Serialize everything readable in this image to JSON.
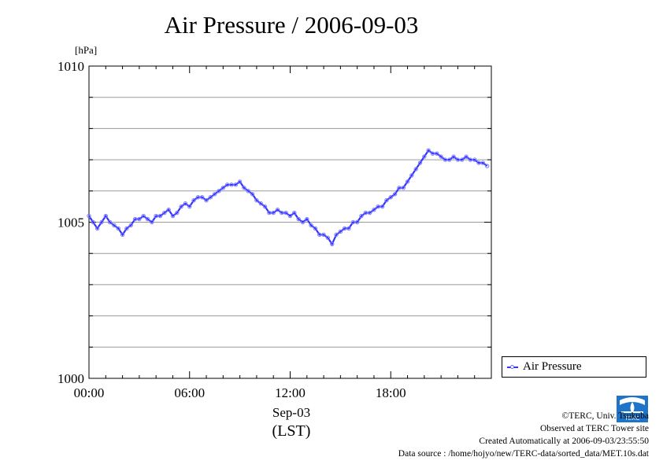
{
  "title": "Air Pressure / 2006-09-03",
  "chart_data": {
    "type": "line",
    "title": "Air Pressure / 2006-09-03",
    "ylabel": "[hPa]",
    "ylim": [
      1000,
      1010
    ],
    "y_ticks": [
      "1000",
      "1005",
      "1010"
    ],
    "xlim": [
      0,
      24
    ],
    "x_ticks": [
      "00:00",
      "06:00",
      "12:00",
      "18:00"
    ],
    "x_tick_values": [
      0,
      6,
      12,
      18
    ],
    "x_sublabel_date": "Sep-03",
    "x_sublabel_tz": "(LST)",
    "grid": true,
    "legend_position": "bottom-right outside",
    "series": [
      {
        "name": "Air Pressure",
        "color": "#3333ff",
        "x": [
          0,
          0.25,
          0.5,
          0.75,
          1,
          1.25,
          1.5,
          1.75,
          2,
          2.25,
          2.5,
          2.75,
          3,
          3.25,
          3.5,
          3.75,
          4,
          4.25,
          4.5,
          4.75,
          5,
          5.25,
          5.5,
          5.75,
          6,
          6.25,
          6.5,
          6.75,
          7,
          7.25,
          7.5,
          7.75,
          8,
          8.25,
          8.5,
          8.75,
          9,
          9.25,
          9.5,
          9.75,
          10,
          10.25,
          10.5,
          10.75,
          11,
          11.25,
          11.5,
          11.75,
          12,
          12.25,
          12.5,
          12.75,
          13,
          13.25,
          13.5,
          13.75,
          14,
          14.25,
          14.5,
          14.75,
          15,
          15.25,
          15.5,
          15.75,
          16,
          16.25,
          16.5,
          16.75,
          17,
          17.25,
          17.5,
          17.75,
          18,
          18.25,
          18.5,
          18.75,
          19,
          19.25,
          19.5,
          19.75,
          20,
          20.25,
          20.5,
          20.75,
          21,
          21.25,
          21.5,
          21.75,
          22,
          22.25,
          22.5,
          22.75,
          23,
          23.25,
          23.5,
          23.75
        ],
        "values": [
          1005.2,
          1005.0,
          1004.8,
          1005.0,
          1005.2,
          1005.0,
          1004.9,
          1004.8,
          1004.6,
          1004.8,
          1004.9,
          1005.1,
          1005.1,
          1005.2,
          1005.1,
          1005.0,
          1005.2,
          1005.2,
          1005.3,
          1005.4,
          1005.2,
          1005.3,
          1005.5,
          1005.6,
          1005.5,
          1005.7,
          1005.8,
          1005.8,
          1005.7,
          1005.8,
          1005.9,
          1006.0,
          1006.1,
          1006.2,
          1006.2,
          1006.2,
          1006.3,
          1006.1,
          1006.0,
          1005.9,
          1005.7,
          1005.6,
          1005.5,
          1005.3,
          1005.3,
          1005.4,
          1005.3,
          1005.3,
          1005.2,
          1005.3,
          1005.1,
          1005.0,
          1005.1,
          1004.9,
          1004.8,
          1004.6,
          1004.6,
          1004.5,
          1004.3,
          1004.6,
          1004.7,
          1004.8,
          1004.8,
          1005.0,
          1005.0,
          1005.2,
          1005.3,
          1005.3,
          1005.4,
          1005.5,
          1005.5,
          1005.7,
          1005.8,
          1005.9,
          1006.1,
          1006.1,
          1006.3,
          1006.5,
          1006.7,
          1006.9,
          1007.1,
          1007.3,
          1007.2,
          1007.2,
          1007.1,
          1007.0,
          1007.0,
          1007.1,
          1007.0,
          1007.0,
          1007.1,
          1007.0,
          1007.0,
          1006.9,
          1006.9,
          1006.8
        ]
      }
    ]
  },
  "legend": {
    "label": "Air Pressure"
  },
  "credits": {
    "line1": "©TERC, Univ. Tsukuba",
    "line2": "Observed at TERC Tower site",
    "line3": "Created Automatically at 2006-09-03/23:55:50",
    "line4": "Data source : /home/hojyo/new/TERC-data/sorted_data/MET.10s.dat"
  },
  "logo": {
    "text": "TERC"
  }
}
